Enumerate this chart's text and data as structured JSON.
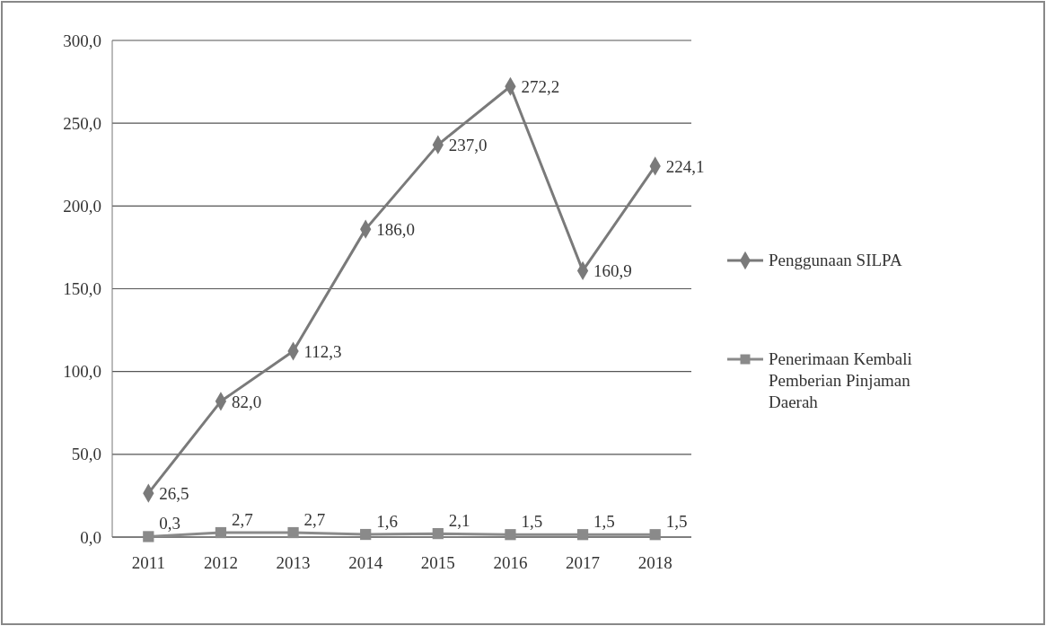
{
  "chart_data": {
    "type": "line",
    "categories": [
      "2011",
      "2012",
      "2013",
      "2014",
      "2015",
      "2016",
      "2017",
      "2018"
    ],
    "series": [
      {
        "name": "Penggunaan SILPA",
        "color": "#7a7a7a",
        "marker": "diamond",
        "values": [
          26.5,
          82.0,
          112.3,
          186.0,
          237.0,
          272.2,
          160.9,
          224.1
        ],
        "value_labels": [
          "26,5",
          "82,0",
          "112,3",
          "186,0",
          "237,0",
          "272,2",
          "160,9",
          "224,1"
        ]
      },
      {
        "name": "Penerimaan Kembali Pemberian Pinjaman Daerah",
        "color": "#8a8a8a",
        "marker": "square",
        "values": [
          0.3,
          2.7,
          2.7,
          1.6,
          2.1,
          1.5,
          1.5,
          1.5
        ],
        "value_labels": [
          "0,3",
          "2,7",
          "2,7",
          "1,6",
          "2,1",
          "1,5",
          "1,5",
          "1,5"
        ]
      }
    ],
    "ylim": [
      0,
      300
    ],
    "yticks": [
      {
        "value": 0,
        "label": "0,0"
      },
      {
        "value": 50,
        "label": "50,0"
      },
      {
        "value": 100,
        "label": "100,0"
      },
      {
        "value": 150,
        "label": "150,0"
      },
      {
        "value": 200,
        "label": "200,0"
      },
      {
        "value": 250,
        "label": "250,0"
      },
      {
        "value": 300,
        "label": "300,0"
      }
    ],
    "grid": "y",
    "legend": "right"
  }
}
